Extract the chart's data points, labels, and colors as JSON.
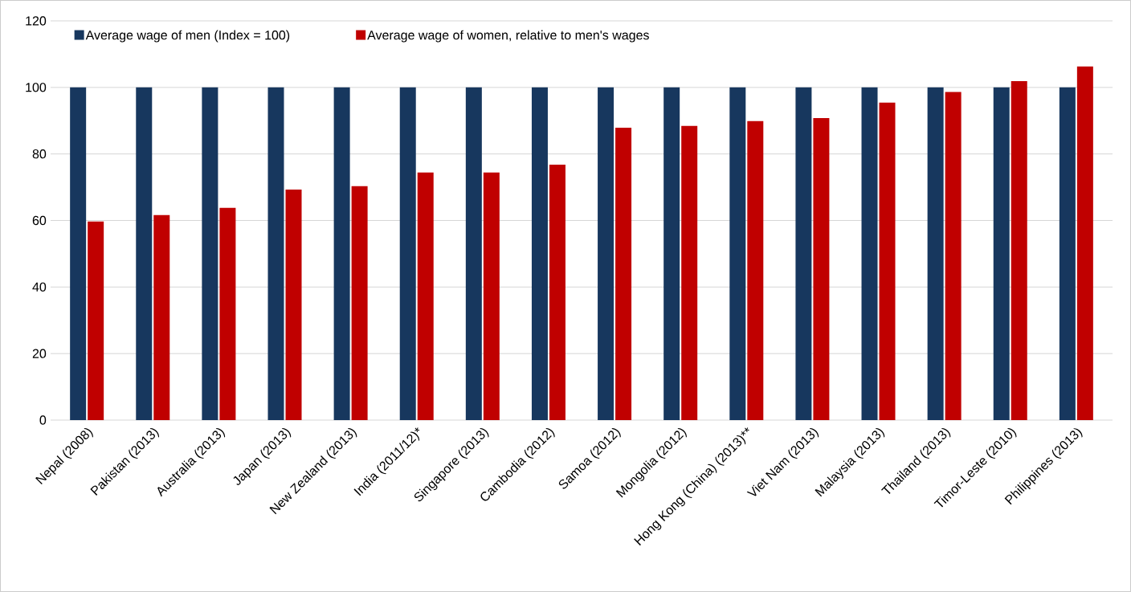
{
  "chart_data": {
    "type": "bar",
    "categories": [
      "Nepal (2008)",
      "Pakistan (2013)",
      "Australia (2013)",
      "Japan (2013)",
      "New Zealand (2013)",
      "India (2011/12)*",
      "Singapore (2013)",
      "Cambodia (2012)",
      "Samoa (2012)",
      "Mongolia (2012)",
      "Hong Kong (China) (2013)**",
      "Viet Nam (2013)",
      "Malaysia (2013)",
      "Thailand (2013)",
      "Timor-Leste (2010)",
      "Philippines (2013)"
    ],
    "series": [
      {
        "name": "Average wage of men (Index = 100)",
        "color": "#17375e",
        "values": [
          100,
          100,
          100,
          100,
          100,
          100,
          100,
          100,
          100,
          100,
          100,
          100,
          100,
          100,
          100,
          100
        ]
      },
      {
        "name": "Average wage of women, relative to men's wages",
        "color": "#c00000",
        "values": [
          59.7,
          61.6,
          63.8,
          69.3,
          70.3,
          74.4,
          74.4,
          76.8,
          87.9,
          88.4,
          89.9,
          90.8,
          95.4,
          98.6,
          101.9,
          106.3
        ]
      }
    ],
    "ylim": [
      0,
      120
    ],
    "yticks": [
      0,
      20,
      40,
      60,
      80,
      100,
      120
    ],
    "grid": "y",
    "legend": "top left"
  }
}
